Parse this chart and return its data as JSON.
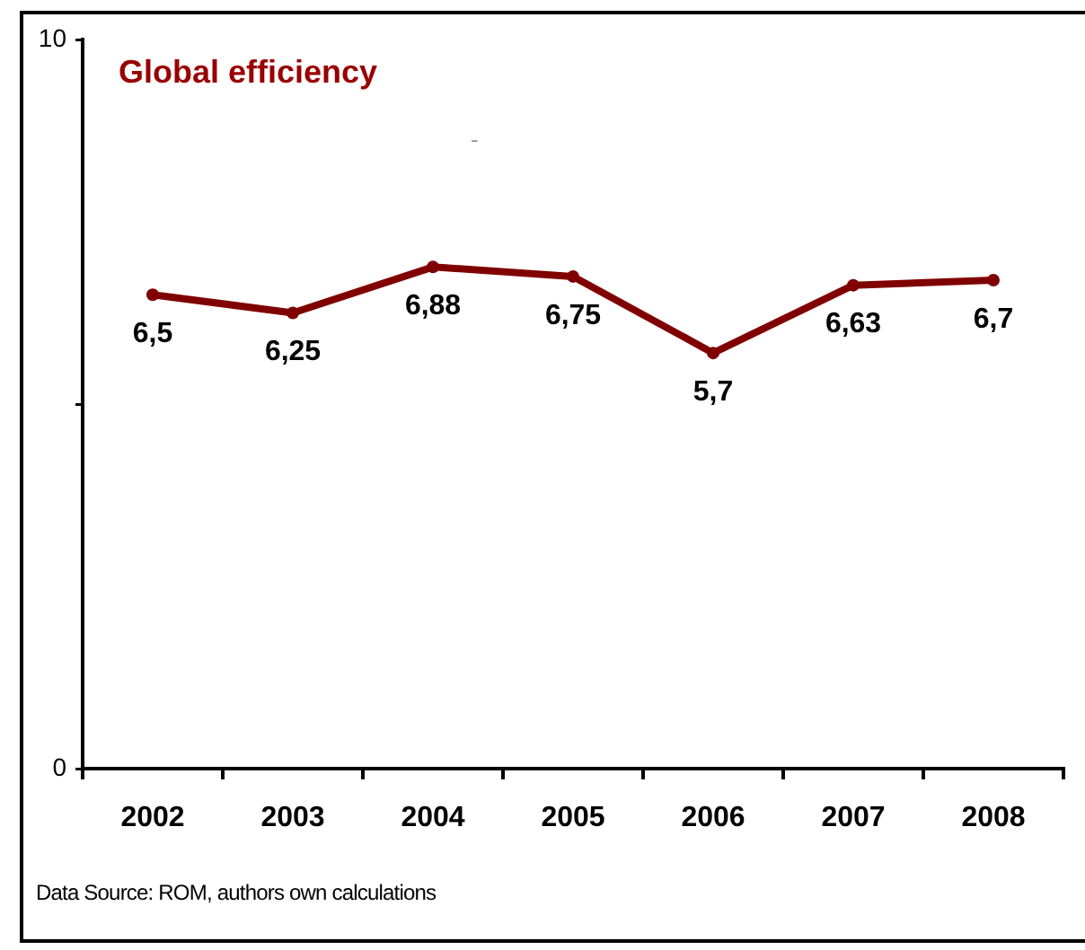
{
  "chart_data": {
    "type": "line",
    "title": "Global efficiency",
    "categories": [
      "2002",
      "2003",
      "2004",
      "2005",
      "2006",
      "2007",
      "2008"
    ],
    "series": [
      {
        "color": "#800000",
        "values": [
          6.5,
          6.25,
          6.88,
          6.75,
          5.7,
          6.63,
          6.7
        ],
        "value_labels": [
          "6,5",
          "6,25",
          "6,88",
          "6,75",
          "5,7",
          "6,63",
          "6,7"
        ]
      }
    ],
    "ylim": [
      0,
      10
    ],
    "yticks": [
      0,
      {
        "value": 5,
        "label": null
      },
      10
    ],
    "grid": false,
    "legend": false,
    "marker": "circle",
    "line_style": "solid",
    "annotations": [
      "Data Source: ROM, authors own calculations",
      "-"
    ]
  }
}
